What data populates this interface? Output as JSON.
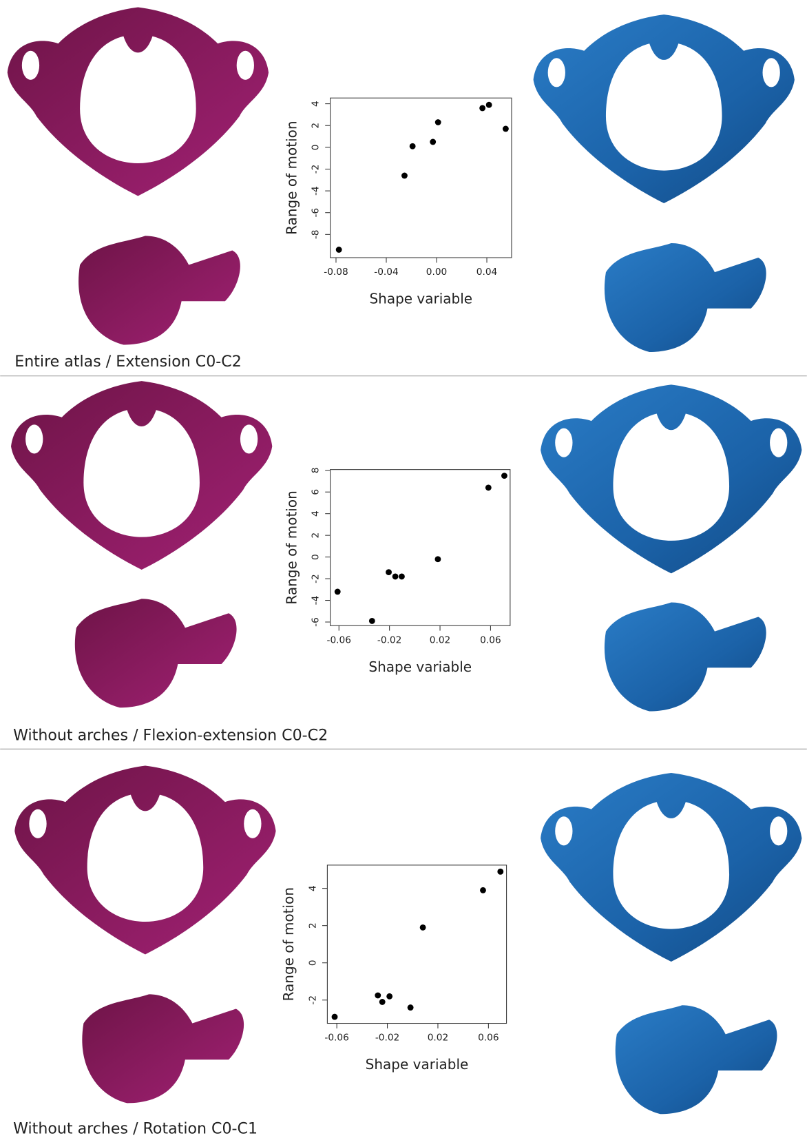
{
  "chart_data": [
    {
      "type": "scatter",
      "title": "Entire atlas / Extension C0-C2",
      "x_label": "Shape variable",
      "y_label": "Range of motion",
      "series": [
        {
          "color": "#000000",
          "x": [
            -0.0777,
            -0.0255,
            -0.0191,
            -0.0029,
            0.0012,
            0.0365,
            0.0417,
            0.055
          ],
          "values": [
            -9.4,
            -2.6,
            0.1,
            0.5,
            2.3,
            3.6,
            3.9,
            1.7
          ]
        }
      ],
      "xlim": [
        -0.0846,
        0.0597
      ],
      "ylim": [
        -10.13,
        4.53
      ],
      "xticks": [
        -0.08,
        -0.04,
        {
          "value": 0,
          "label": "0.00"
        },
        0.04
      ],
      "yticks": [
        -8,
        -6,
        -4,
        -2,
        0,
        2,
        4
      ]
    },
    {
      "type": "scatter",
      "title": "Without arches / Flexion-extension C0-C2",
      "x_label": "Shape variable",
      "y_label": "Range of motion",
      "series": [
        {
          "color": "#000000",
          "x": [
            -0.0611,
            -0.0338,
            -0.0206,
            -0.0154,
            -0.0103,
            0.0183,
            0.0583,
            0.0709
          ],
          "values": [
            -3.2,
            -5.9,
            -1.4,
            -1.8,
            -1.8,
            -0.2,
            6.4,
            7.5
          ]
        }
      ],
      "xlim": [
        -0.0669,
        0.0755
      ],
      "ylim": [
        -6.33,
        8.07
      ],
      "xticks": [
        -0.06,
        -0.02,
        0.02,
        0.06
      ],
      "yticks": [
        -6,
        -4,
        -2,
        0,
        2,
        4,
        6,
        8
      ]
    },
    {
      "type": "scatter",
      "title": "Without arches / Rotation C0-C1",
      "x_label": "Shape variable",
      "y_label": "Range of motion",
      "series": [
        {
          "color": "#000000",
          "x": [
            -0.0617,
            -0.0275,
            -0.024,
            -0.0183,
            -0.0017,
            0.0081,
            0.0557,
            0.0695
          ],
          "values": [
            -2.9,
            -1.75,
            -2.1,
            -1.8,
            -2.4,
            1.9,
            3.9,
            4.9
          ]
        }
      ],
      "xlim": [
        -0.0675,
        0.0743
      ],
      "ylim": [
        -3.25,
        5.25
      ],
      "xticks": [
        -0.06,
        -0.02,
        0.02,
        0.06
      ],
      "yticks": [
        -2,
        0,
        2,
        4
      ]
    }
  ]
}
